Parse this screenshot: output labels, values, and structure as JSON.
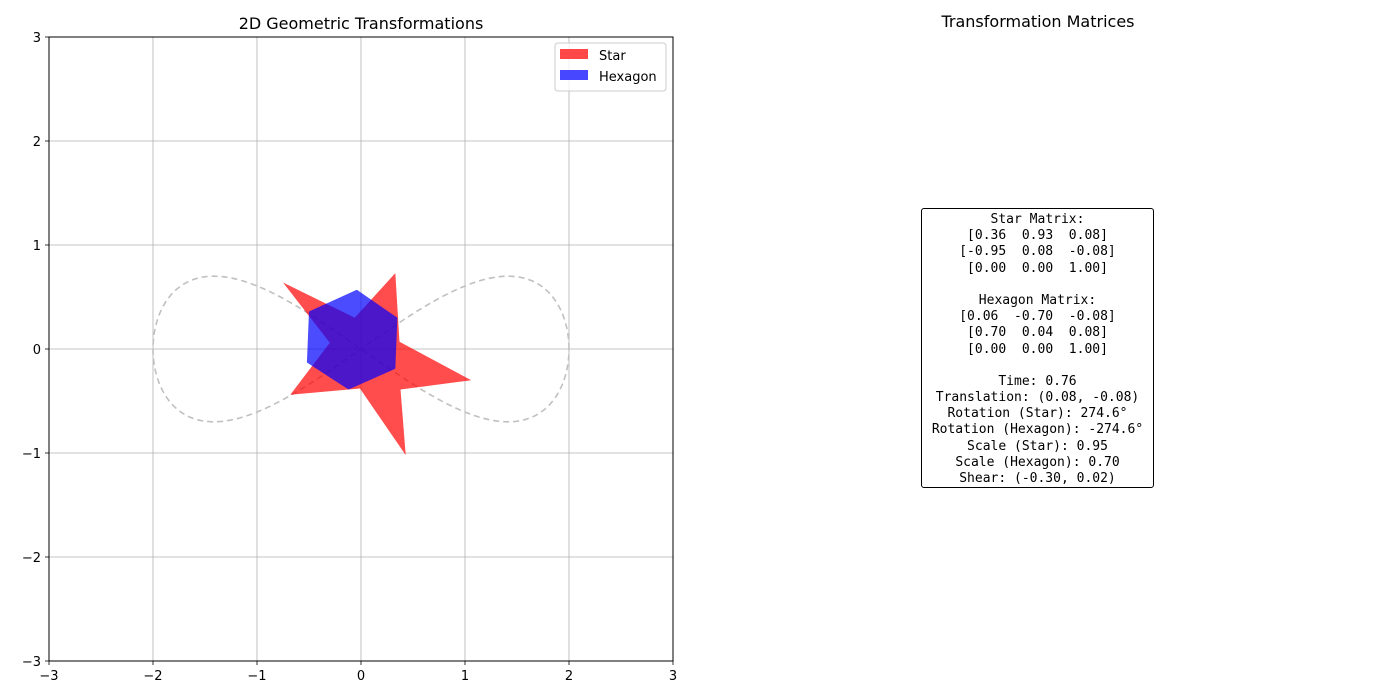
{
  "chart_data": [
    {
      "type": "scatter",
      "title": "2D Geometric Transformations",
      "xlim": [
        -3,
        3
      ],
      "ylim": [
        -3,
        3
      ],
      "xticks": [
        "−3",
        "−2",
        "−1",
        "0",
        "1",
        "2",
        "3"
      ],
      "yticks": [
        "−3",
        "−2",
        "−1",
        "0",
        "1",
        "2",
        "3"
      ],
      "grid": true,
      "legend_position": "upper right",
      "legend": [
        {
          "name": "Star",
          "color": "#ff4747"
        },
        {
          "name": "Hexagon",
          "color": "#4747ff"
        }
      ],
      "series": [
        {
          "name": "Star",
          "shape": "filled polygon",
          "color": "#ff0000",
          "alpha": 0.7,
          "points": [
            [
              0.33,
              0.73
            ],
            [
              0.37,
              0.07
            ],
            [
              1.06,
              -0.3
            ],
            [
              0.38,
              -0.39
            ],
            [
              0.43,
              -1.02
            ],
            [
              -0.01,
              -0.38
            ],
            [
              -0.68,
              -0.44
            ],
            [
              -0.3,
              0.06
            ],
            [
              -0.75,
              0.64
            ],
            [
              -0.06,
              0.3
            ]
          ]
        },
        {
          "name": "Hexagon",
          "shape": "filled polygon",
          "color": "#0000ff",
          "alpha": 0.7,
          "points": [
            [
              -0.04,
              0.57
            ],
            [
              0.35,
              0.3
            ],
            [
              0.33,
              -0.19
            ],
            [
              -0.12,
              -0.39
            ],
            [
              -0.52,
              -0.13
            ],
            [
              -0.5,
              0.36
            ]
          ]
        },
        {
          "name": "Trajectory",
          "shape": "dashed line",
          "color": "#c0c0c0",
          "curve": "lemniscate of Gerono (2cos t, 0.7 sin 2t)",
          "points": [
            [
              2.0,
              0.0
            ],
            [
              1.5,
              0.66
            ],
            [
              1.22,
              0.7
            ],
            [
              0.6,
              0.5
            ],
            [
              0.0,
              0.0
            ],
            [
              -0.6,
              -0.5
            ],
            [
              -1.22,
              -0.7
            ],
            [
              -1.5,
              -0.66
            ],
            [
              -2.0,
              0.0
            ],
            [
              -1.5,
              0.66
            ],
            [
              -1.22,
              0.7
            ],
            [
              -0.6,
              0.5
            ],
            [
              0.0,
              0.0
            ],
            [
              0.6,
              -0.5
            ],
            [
              1.22,
              -0.7
            ],
            [
              1.5,
              -0.66
            ],
            [
              2.0,
              0.0
            ]
          ]
        }
      ]
    }
  ],
  "matrix_panel": {
    "title": "Transformation Matrices",
    "lines": [
      "Star Matrix:",
      "[0.36  0.93  0.08]",
      "[-0.95  0.08  -0.08]",
      "[0.00  0.00  1.00]",
      "",
      "Hexagon Matrix:",
      "[0.06  -0.70  -0.08]",
      "[0.70  0.04  0.08]",
      "[0.00  0.00  1.00]",
      "",
      "Time: 0.76",
      "Translation: (0.08, -0.08)",
      "Rotation (Star): 274.6°",
      "Rotation (Hexagon): -274.6°",
      "Scale (Star): 0.95",
      "Scale (Hexagon): 0.70",
      "Shear: (-0.30, 0.02)"
    ]
  }
}
